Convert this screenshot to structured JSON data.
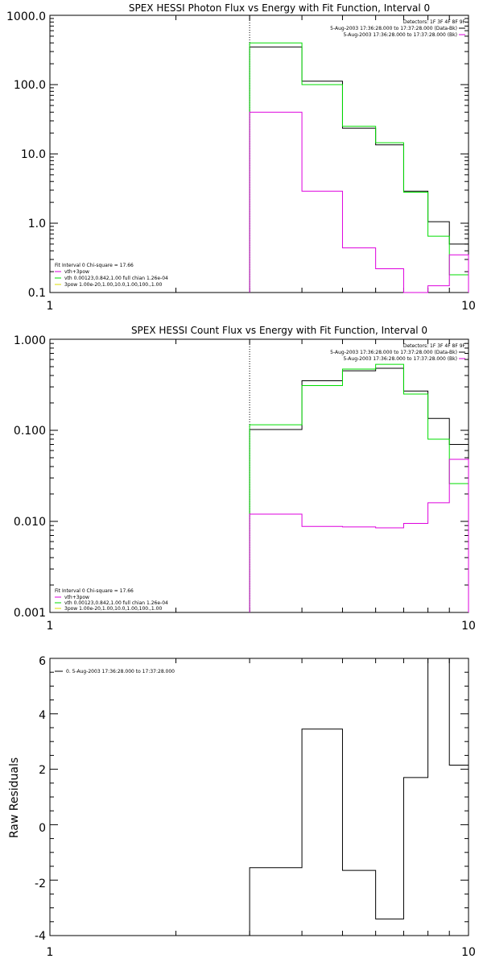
{
  "chart_data": [
    {
      "type": "line",
      "title": "SPEX HESSI Photon Flux vs Energy with Fit Function, Interval 0",
      "xlabel": "",
      "ylabel": "",
      "x_scale": "log",
      "y_scale": "log",
      "xlim": [
        1,
        10
      ],
      "ylim": [
        0.1,
        1000
      ],
      "y_ticks": [
        "0.1",
        "1.0",
        "10.0",
        "100.0",
        "1000.0"
      ],
      "x_ticks": [
        "1",
        "10"
      ],
      "legend_top": [
        "Detectors: 1F 3F 4F 8F 9F",
        "5-Aug-2003 17:36:28.000 to 17:37:28.000 (Data-Bk)",
        "5-Aug-2003 17:36:28.000 to 17:37:28.000 (Bk)"
      ],
      "legend_bottom": [
        "Fit Interval 0   Chi-square = 17.66",
        "vth+3pow",
        "vth 0.00123,0.842,1.00   full chian 1.26e-04",
        "3pow 1.00e-20,1.00,10.0,1.00,100.,1.00"
      ],
      "marker_x": 3,
      "bin_edges": [
        3,
        4,
        5,
        6,
        7,
        8,
        9,
        10
      ],
      "series": [
        {
          "color": "#000000",
          "values": [
            350,
            112,
            23.5,
            13.5,
            2.9,
            1.05,
            0.5
          ]
        },
        {
          "color": "#00dd00",
          "values": [
            400,
            100,
            25,
            14.5,
            2.8,
            0.65,
            0.18
          ]
        },
        {
          "color": "#dd00dd",
          "values": [
            40,
            2.9,
            0.44,
            0.22,
            0.095,
            0.125,
            0.35
          ]
        }
      ]
    },
    {
      "type": "line",
      "title": "SPEX HESSI Count Flux vs Energy with Fit Function, Interval 0",
      "xlabel": "",
      "ylabel": "",
      "x_scale": "log",
      "y_scale": "log",
      "xlim": [
        1,
        10
      ],
      "ylim": [
        0.001,
        1
      ],
      "y_ticks": [
        "0.001",
        "0.010",
        "0.100",
        "1.000"
      ],
      "x_ticks": [
        "1",
        "10"
      ],
      "legend_top": [
        "Detectors: 1F 3F 4F 8F 9F",
        "5-Aug-2003 17:36:28.000 to 17:37:28.000 (Data-Bk)",
        "5-Aug-2003 17:36:28.000 to 17:37:28.000 (Bk)"
      ],
      "legend_bottom": [
        "Fit Interval 0   Chi-square = 17.66",
        "vth+3pow",
        "vth 0.00123,0.842,1.00   full chian 1.26e-04",
        "3pow 1.00e-20,1.00,10.0,1.00,100.,1.00"
      ],
      "marker_x": 3,
      "bin_edges": [
        3,
        4,
        5,
        6,
        7,
        8,
        9,
        10
      ],
      "series": [
        {
          "color": "#000000",
          "values": [
            0.102,
            0.35,
            0.45,
            0.48,
            0.27,
            0.135,
            0.07
          ]
        },
        {
          "color": "#00dd00",
          "values": [
            0.115,
            0.31,
            0.47,
            0.53,
            0.25,
            0.08,
            0.026
          ]
        },
        {
          "color": "#dd00dd",
          "values": [
            0.012,
            0.0088,
            0.0087,
            0.0085,
            0.0095,
            0.016,
            0.048
          ]
        }
      ]
    },
    {
      "type": "line",
      "title": "",
      "xlabel": "",
      "ylabel": "Raw Residuals",
      "x_scale": "log",
      "y_scale": "linear",
      "xlim": [
        1,
        10
      ],
      "ylim": [
        -4,
        6
      ],
      "y_ticks": [
        "-4",
        "-2",
        "0",
        "2",
        "4",
        "6"
      ],
      "x_ticks": [
        "1",
        "10"
      ],
      "legend_top": [
        "0. 5-Aug-2003 17:36:28.000 to 17:37:28.000"
      ],
      "bin_edges": [
        3,
        4,
        5,
        6,
        7,
        8,
        9,
        10
      ],
      "series": [
        {
          "color": "#000000",
          "values": [
            -1.55,
            3.45,
            -1.65,
            -3.4,
            1.7,
            6.0,
            2.15
          ]
        }
      ]
    }
  ]
}
